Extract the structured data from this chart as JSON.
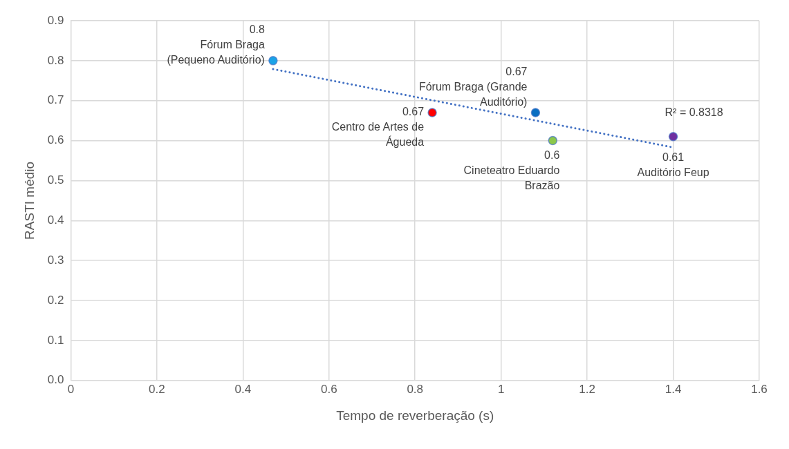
{
  "chart_data": {
    "type": "scatter",
    "xlabel": "Tempo de reverberação (s)",
    "ylabel": "RASTI médio",
    "xlim": [
      0,
      1.6
    ],
    "xticks": [
      0,
      0.2,
      0.4,
      0.6,
      0.8,
      1,
      1.2,
      1.4,
      1.6
    ],
    "ylim": [
      0,
      0.9
    ],
    "yticks": [
      {
        "value": 0,
        "label": "0.0"
      },
      0.1,
      0.2,
      0.3,
      0.4,
      0.5,
      0.6,
      0.7,
      0.8,
      0.9
    ],
    "grid": true,
    "legend": false,
    "marker": "circle",
    "data_labels": true,
    "series": [
      {
        "name": "Fórum Braga (Pequeno Auditório)",
        "color": "#1aa3e8",
        "x": [
          0.47
        ],
        "values": [
          0.8
        ]
      },
      {
        "name": "Centro de Artes de Águeda",
        "color": "#ff0000",
        "x": [
          0.84
        ],
        "values": [
          0.67
        ]
      },
      {
        "name": "Fórum Braga (Grande Auditório)",
        "color": "#0a6fc2",
        "x": [
          1.08
        ],
        "values": [
          0.67
        ]
      },
      {
        "name": "Cineteatro Eduardo Brazão",
        "color": "#8cc84b",
        "x": [
          1.12
        ],
        "values": [
          0.6
        ]
      },
      {
        "name": "Auditório Feup",
        "color": "#7030a0",
        "x": [
          1.4
        ],
        "values": [
          0.61
        ]
      },
      {
        "type": "line",
        "color": "#4472c4",
        "line_style": "dotted",
        "marker": "none",
        "x": [
          0.47,
          1.4
        ],
        "values": [
          0.779,
          0.583
        ],
        "value_labels": [
          null,
          null
        ]
      }
    ],
    "annotations": [
      "R² = 0.8318"
    ]
  }
}
